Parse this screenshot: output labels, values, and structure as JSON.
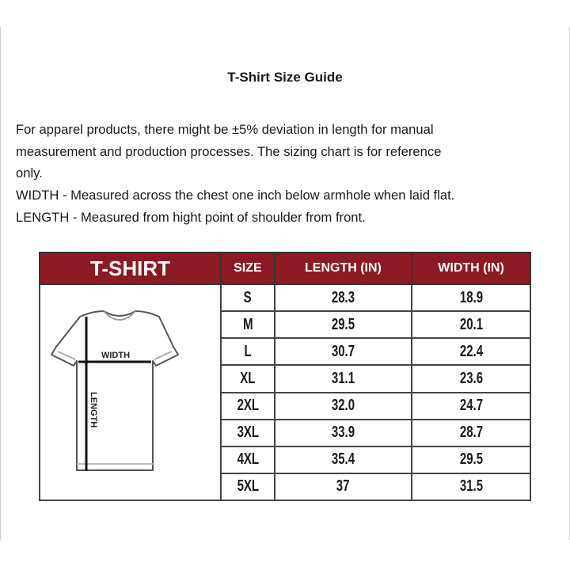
{
  "title": "T-Shirt Size Guide",
  "description": [
    "For apparel products, there might be ±5% deviation in length for manual",
    "measurement and production processes. The sizing chart is for reference",
    "only.",
    "WIDTH - Measured across the chest one inch below armhole when laid flat.",
    "LENGTH - Measured from hight point of shoulder from front."
  ],
  "table": {
    "header_color": "#8b1a24",
    "headers": [
      "T-SHIRT",
      "SIZE",
      "LENGTH (IN)",
      "WIDTH (IN)"
    ],
    "diagram_labels": {
      "width": "WIDTH",
      "length": "LENGTH"
    },
    "rows": [
      {
        "size": "S",
        "length": "28.3",
        "width": "18.9"
      },
      {
        "size": "M",
        "length": "29.5",
        "width": "20.1"
      },
      {
        "size": "L",
        "length": "30.7",
        "width": "22.4"
      },
      {
        "size": "XL",
        "length": "31.1",
        "width": "23.6"
      },
      {
        "size": "2XL",
        "length": "32.0",
        "width": "24.7"
      },
      {
        "size": "3XL",
        "length": "33.9",
        "width": "28.7"
      },
      {
        "size": "4XL",
        "length": "35.4",
        "width": "29.5"
      },
      {
        "size": "5XL",
        "length": "37",
        "width": "31.5"
      }
    ]
  }
}
